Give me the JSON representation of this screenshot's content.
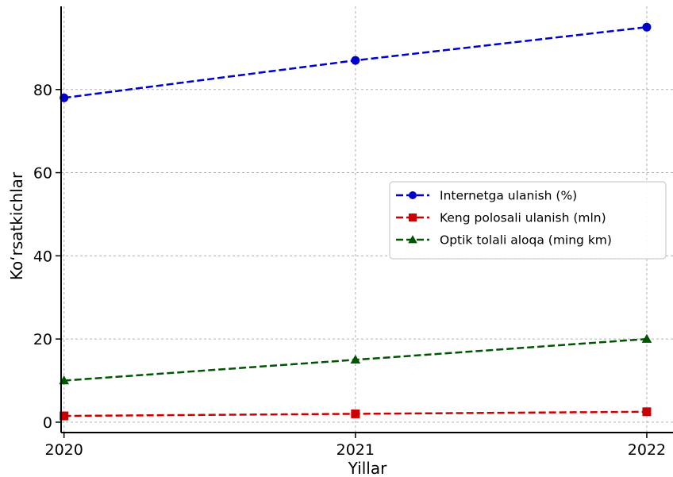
{
  "chart_data": {
    "type": "line",
    "title": "",
    "xlabel": "Yillar",
    "ylabel": "Ko‘rsatkichlar",
    "x": [
      2020,
      2021,
      2022
    ],
    "x_tick_labels": [
      "2020",
      "2021",
      "2022"
    ],
    "y_ticks": [
      0,
      20,
      40,
      60,
      80
    ],
    "y_tick_labels": [
      "0",
      "20",
      "40",
      "60",
      "80"
    ],
    "xlim": [
      2019.99,
      2022.09
    ],
    "ylim": [
      -2.5,
      100
    ],
    "grid": true,
    "legend_position": "center-right",
    "series": [
      {
        "name": "Internetga ulanish (%)",
        "values": [
          78,
          87,
          95
        ],
        "color": "#0000cc",
        "marker": "circle",
        "line_style": "dashed"
      },
      {
        "name": "Keng polosali ulanish (mln)",
        "values": [
          1.5,
          2,
          2.5
        ],
        "color": "#cc0000",
        "marker": "square",
        "line_style": "dashed"
      },
      {
        "name": "Optik tolali aloqa (ming km)",
        "values": [
          10,
          15,
          20
        ],
        "color": "#005500",
        "marker": "triangle",
        "line_style": "dashed"
      }
    ]
  }
}
